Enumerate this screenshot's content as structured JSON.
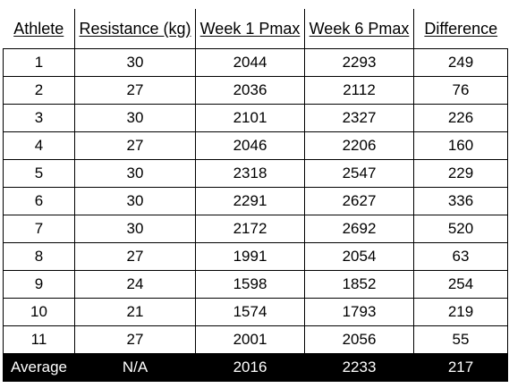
{
  "table": {
    "headers": [
      "Athlete",
      "Resistance (kg)",
      "Week 1 Pmax",
      "Week 6 Pmax",
      "Difference"
    ],
    "rows": [
      [
        "1",
        "30",
        "2044",
        "2293",
        "249"
      ],
      [
        "2",
        "27",
        "2036",
        "2112",
        "76"
      ],
      [
        "3",
        "30",
        "2101",
        "2327",
        "226"
      ],
      [
        "4",
        "27",
        "2046",
        "2206",
        "160"
      ],
      [
        "5",
        "30",
        "2318",
        "2547",
        "229"
      ],
      [
        "6",
        "30",
        "2291",
        "2627",
        "336"
      ],
      [
        "7",
        "30",
        "2172",
        "2692",
        "520"
      ],
      [
        "8",
        "27",
        "1991",
        "2054",
        "63"
      ],
      [
        "9",
        "24",
        "1598",
        "1852",
        "254"
      ],
      [
        "10",
        "21",
        "1574",
        "1793",
        "219"
      ],
      [
        "11",
        "27",
        "2001",
        "2056",
        "55"
      ]
    ],
    "average": [
      "Average",
      "N/A",
      "2016",
      "2233",
      "217"
    ]
  },
  "colors": {
    "average_row_background": "#000000",
    "average_row_text": "#ffffff",
    "border": "#000000"
  }
}
